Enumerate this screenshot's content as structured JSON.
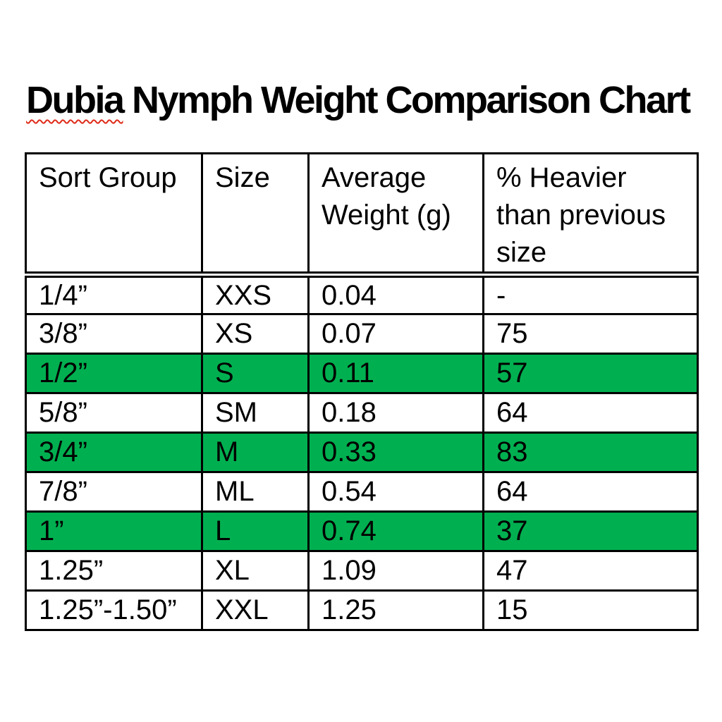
{
  "page": {
    "title": {
      "word1": "Dubia",
      "rest": " Nymph Weight Comparison Chart"
    }
  },
  "colors": {
    "highlight_green": "#00B050",
    "squiggle_red": "#DE2B19",
    "border_black": "#000000",
    "background": "#FFFFFF",
    "text": "#000000"
  },
  "table": {
    "headers": [
      "Sort Group",
      "Size",
      "Average\nWeight (g)",
      "% Heavier\nthan previous\nsize"
    ],
    "rows": [
      {
        "highlight": false,
        "cells": [
          "1/4”",
          "XXS",
          "0.04",
          "-"
        ]
      },
      {
        "highlight": false,
        "cells": [
          "3/8”",
          "XS",
          "0.07",
          "75"
        ]
      },
      {
        "highlight": true,
        "cells": [
          "1/2”",
          "S",
          "0.11",
          "57"
        ]
      },
      {
        "highlight": false,
        "cells": [
          "5/8”",
          "SM",
          "0.18",
          "64"
        ]
      },
      {
        "highlight": true,
        "cells": [
          "3/4”",
          "M",
          "0.33",
          "83"
        ]
      },
      {
        "highlight": false,
        "cells": [
          "7/8”",
          "ML",
          "0.54",
          "64"
        ]
      },
      {
        "highlight": true,
        "cells": [
          "1”",
          "L",
          "0.74",
          "37"
        ]
      },
      {
        "highlight": false,
        "cells": [
          "1.25”",
          "XL",
          "1.09",
          "47"
        ]
      },
      {
        "highlight": false,
        "cells": [
          "1.25”-1.50”",
          "XXL",
          "1.25",
          "15"
        ]
      }
    ]
  },
  "chart_data": {
    "type": "table",
    "title": "Dubia Nymph Weight Comparison Chart",
    "columns": [
      "Sort Group",
      "Size",
      "Average Weight (g)",
      "% Heavier than previous size"
    ],
    "rows": [
      [
        "1/4”",
        "XXS",
        0.04,
        "-"
      ],
      [
        "3/8”",
        "XS",
        0.07,
        75
      ],
      [
        "1/2”",
        "S",
        0.11,
        57
      ],
      [
        "5/8”",
        "SM",
        0.18,
        64
      ],
      [
        "3/4”",
        "M",
        0.33,
        83
      ],
      [
        "7/8”",
        "ML",
        0.54,
        64
      ],
      [
        "1”",
        "L",
        0.74,
        37
      ],
      [
        "1.25”",
        "XL",
        1.09,
        47
      ],
      [
        "1.25”-1.50”",
        "XXL",
        1.25,
        15
      ]
    ],
    "highlighted_row_indices": [
      2,
      4,
      6
    ],
    "highlight_color": "#00B050",
    "header_separator": "double-rule",
    "grid": true
  }
}
